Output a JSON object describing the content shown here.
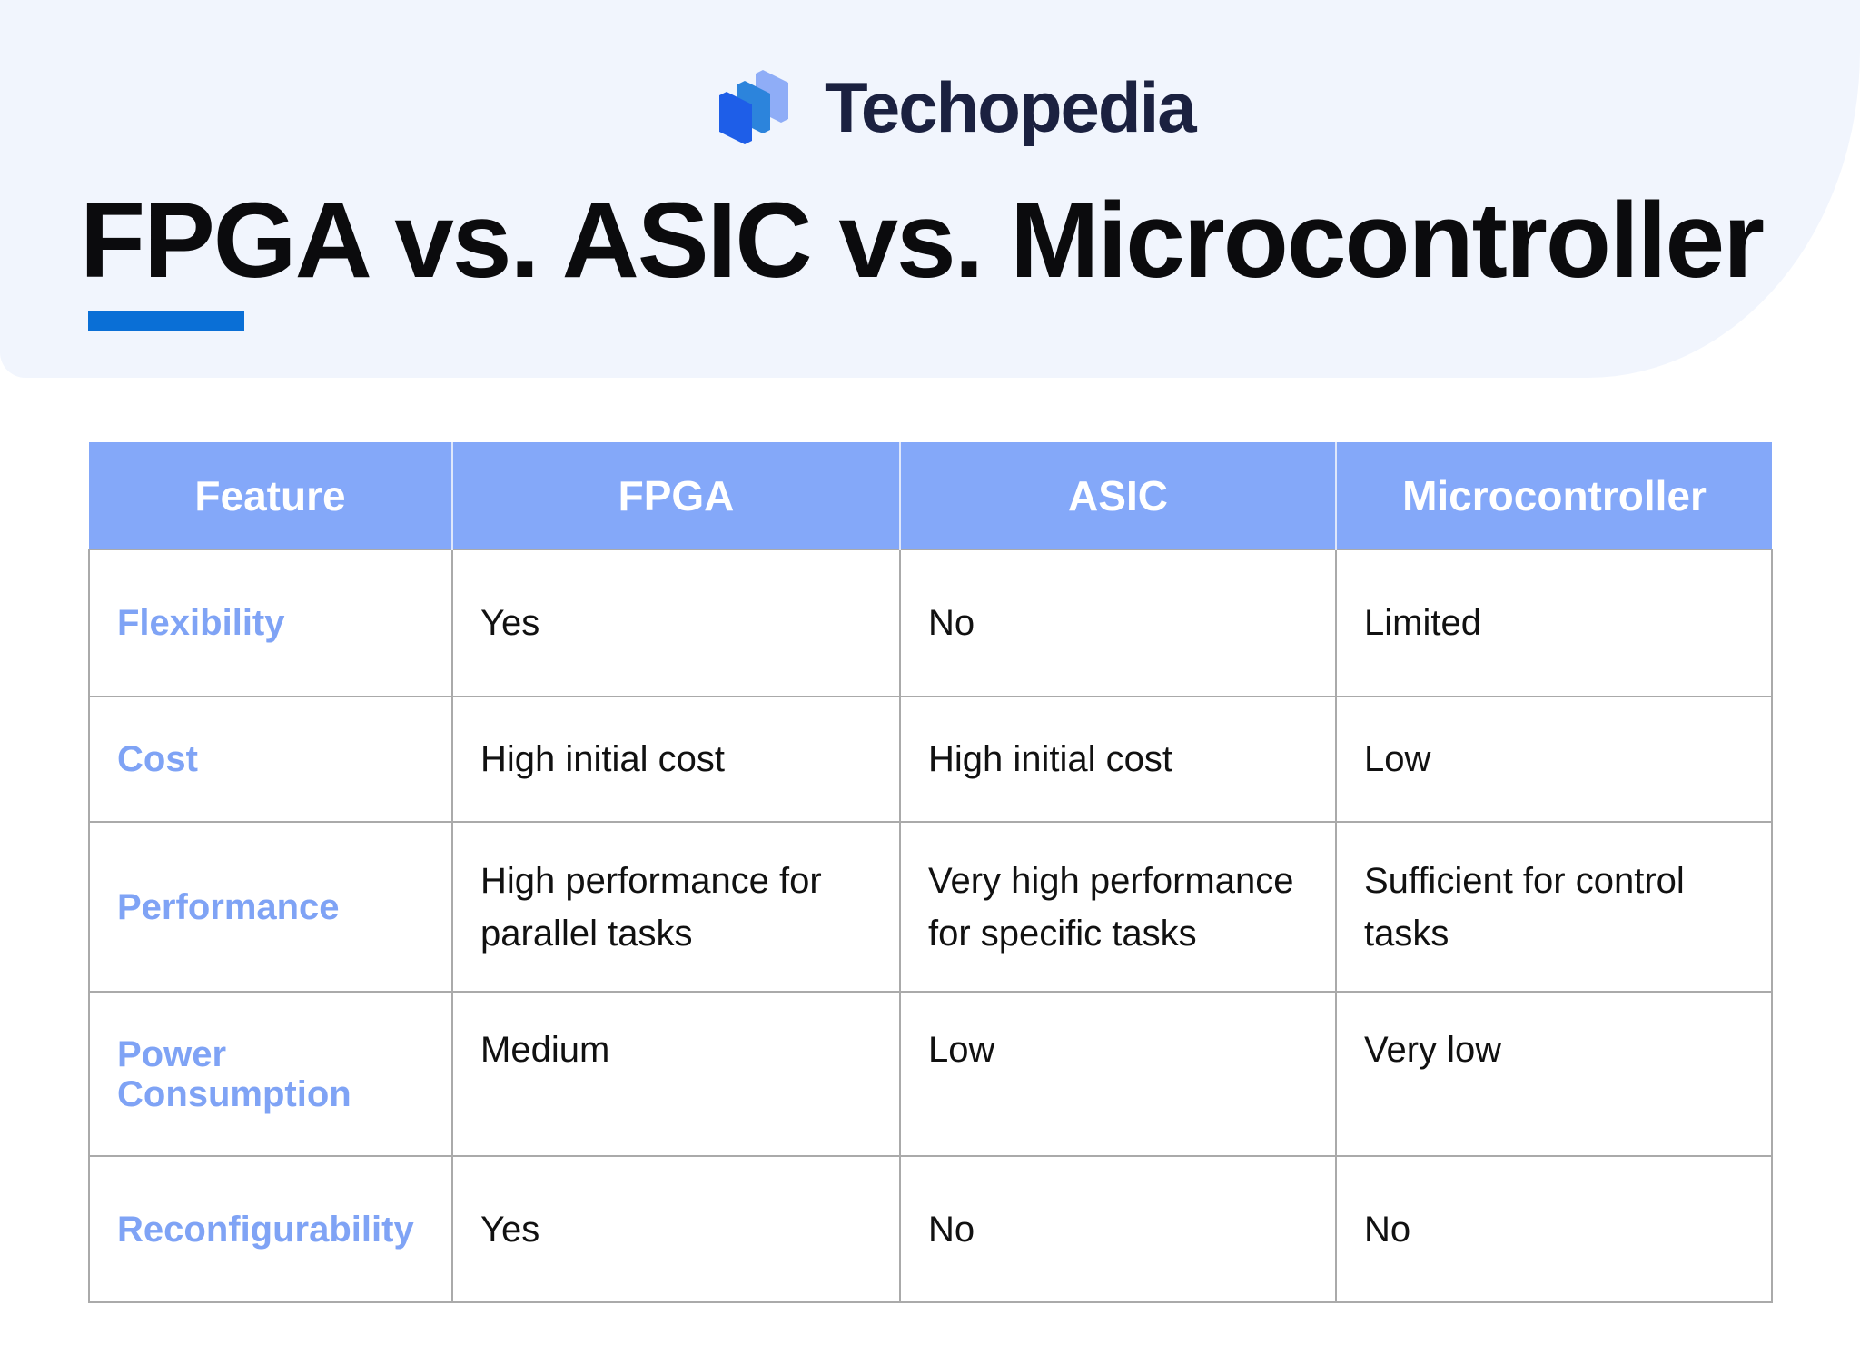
{
  "brand": {
    "name": "Techopedia",
    "logo_icon": "techopedia-logo-icon",
    "colors": {
      "dark": "#1b2140",
      "blue": "#1e5ee8",
      "mid": "#2c84dc",
      "light": "#8fadf7"
    }
  },
  "title": "FPGA vs. ASIC vs. Microcontroller",
  "colors": {
    "accent": "#0a6fd6",
    "header_bg": "#84a8f9",
    "feature_text": "#7fa3f5",
    "hero_bg": "#f1f5fd"
  },
  "table": {
    "headers": [
      "Feature",
      "FPGA",
      "ASIC",
      "Microcontroller"
    ],
    "rows": [
      {
        "feature": "Flexibility",
        "fpga": "Yes",
        "asic": "No",
        "mcu": "Limited"
      },
      {
        "feature": "Cost",
        "fpga": "High initial cost",
        "asic": "High initial cost",
        "mcu": "Low"
      },
      {
        "feature": "Performance",
        "fpga": "High performance for parallel tasks",
        "asic": "Very high performance for specific tasks",
        "mcu": "Sufficient for control tasks"
      },
      {
        "feature": "Power Consumption",
        "fpga": "Medium",
        "asic": "Low",
        "mcu": "Very low"
      },
      {
        "feature": "Reconfigurability",
        "fpga": "Yes",
        "asic": "No",
        "mcu": "No"
      }
    ]
  }
}
